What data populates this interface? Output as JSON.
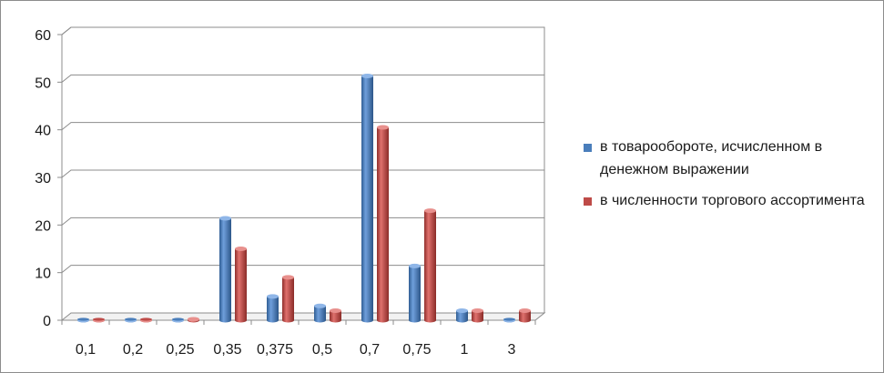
{
  "chart_data": {
    "type": "bar",
    "style": "3d-cylinder",
    "categories": [
      "0,1",
      "0,2",
      "0,25",
      "0,35",
      "0,375",
      "0,5",
      "0,7",
      "0,75",
      "1",
      "3"
    ],
    "series": [
      {
        "name": "в товарообороте, исчисленном в денежном выражении",
        "color": "#4a7ebb",
        "values": [
          0,
          0,
          0,
          21.4,
          5,
          3,
          51.3,
          11.4,
          2,
          0
        ]
      },
      {
        "name": "в численности торгового ассортимента",
        "color": "#be4b48",
        "values": [
          0,
          0,
          0.2,
          15,
          9,
          2,
          40.5,
          23,
          2,
          2
        ]
      }
    ],
    "y_ticks": [
      "0",
      "10",
      "20",
      "30",
      "40",
      "50",
      "60"
    ],
    "ylim": [
      0,
      60
    ],
    "grid": true,
    "legend_position": "right"
  }
}
